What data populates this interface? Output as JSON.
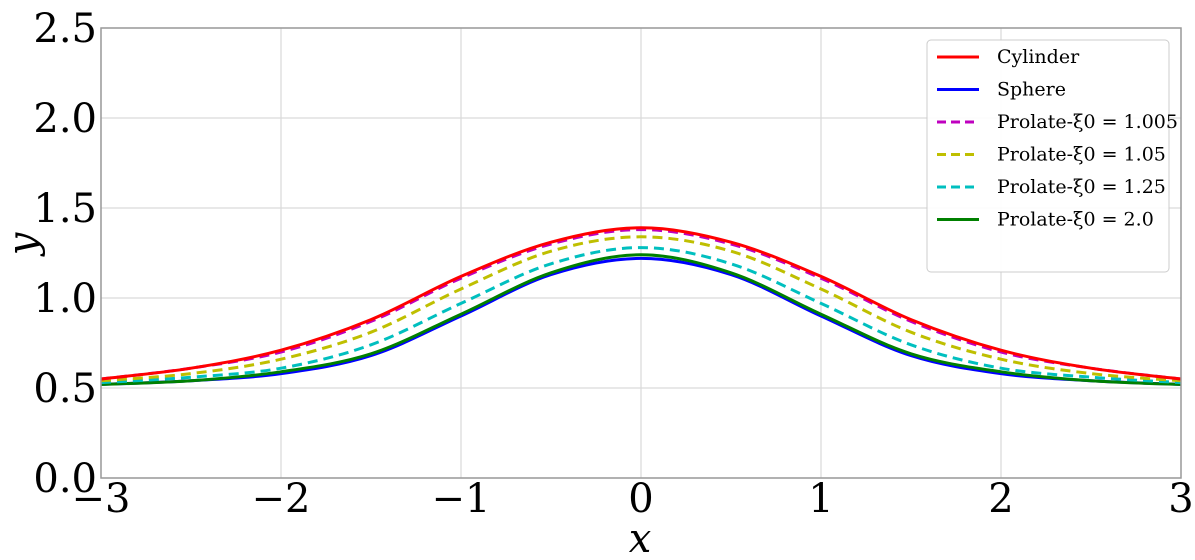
{
  "chart_data": {
    "type": "line",
    "xlabel": "x",
    "ylabel": "y",
    "xlim": [
      -3,
      3
    ],
    "ylim": [
      0,
      2.5
    ],
    "grid": true,
    "legend_position": "top-right",
    "x_ticks": [
      "−3",
      "−2",
      "−1",
      "0",
      "1",
      "2",
      "3"
    ],
    "y_ticks": [
      "0.0",
      "0.5",
      "1.0",
      "1.5",
      "2.0",
      "2.5"
    ],
    "x": [
      -3,
      -2.5,
      -2,
      -1.5,
      -1,
      -0.5,
      0,
      0.5,
      1,
      1.5,
      2,
      2.5,
      3
    ],
    "series": [
      {
        "name": "Cylinder",
        "color": "#ff0000",
        "dash": "solid",
        "width": 3,
        "values": [
          0.55,
          0.61,
          0.71,
          0.88,
          1.12,
          1.31,
          1.39,
          1.31,
          1.12,
          0.88,
          0.71,
          0.61,
          0.55
        ]
      },
      {
        "name": "Sphere",
        "color": "#0000ff",
        "dash": "solid",
        "width": 3,
        "values": [
          0.52,
          0.54,
          0.58,
          0.68,
          0.9,
          1.13,
          1.22,
          1.13,
          0.9,
          0.68,
          0.58,
          0.54,
          0.52
        ]
      },
      {
        "name": "Prolate-ξ0 = 1.005",
        "color": "#bf00bf",
        "dash": "dashed",
        "width": 3,
        "values": [
          0.55,
          0.61,
          0.7,
          0.87,
          1.11,
          1.3,
          1.38,
          1.3,
          1.11,
          0.87,
          0.7,
          0.61,
          0.55
        ]
      },
      {
        "name": "Prolate-ξ0 = 1.05",
        "color": "#bfbf00",
        "dash": "dashed",
        "width": 3,
        "values": [
          0.54,
          0.58,
          0.66,
          0.81,
          1.05,
          1.26,
          1.34,
          1.26,
          1.05,
          0.81,
          0.66,
          0.58,
          0.54
        ]
      },
      {
        "name": "Prolate-ξ0 = 1.25",
        "color": "#00bfbf",
        "dash": "dashed",
        "width": 3,
        "values": [
          0.53,
          0.56,
          0.61,
          0.74,
          0.97,
          1.19,
          1.28,
          1.19,
          0.97,
          0.74,
          0.61,
          0.56,
          0.53
        ]
      },
      {
        "name": "Prolate-ξ0 = 2.0",
        "color": "#008000",
        "dash": "solid",
        "width": 3,
        "values": [
          0.52,
          0.54,
          0.59,
          0.69,
          0.91,
          1.14,
          1.24,
          1.14,
          0.91,
          0.69,
          0.59,
          0.54,
          0.52
        ]
      }
    ]
  }
}
